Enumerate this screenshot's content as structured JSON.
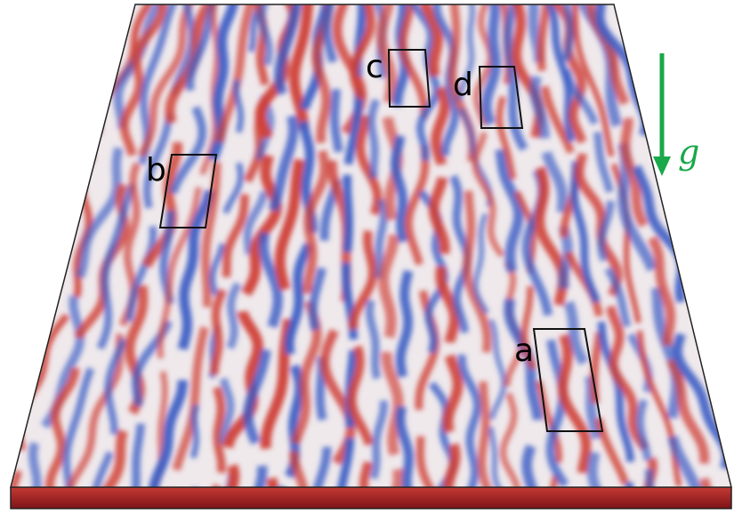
{
  "regions": [
    {
      "label": "a"
    },
    {
      "label": "b"
    },
    {
      "label": "c"
    },
    {
      "label": "d"
    }
  ],
  "gravity": {
    "label": "g"
  }
}
